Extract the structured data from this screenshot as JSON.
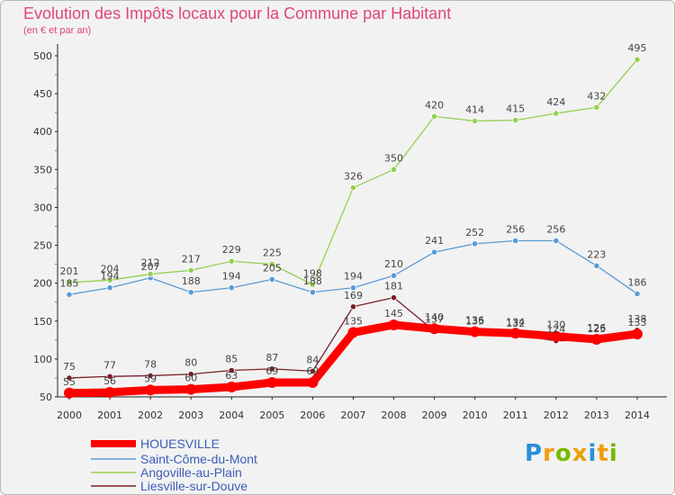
{
  "chart_data": {
    "type": "line",
    "title": "Evolution des Impôts locaux pour la Commune par Habitant",
    "subtitle": "(en € et par an)",
    "xlabel": "",
    "ylabel": "",
    "x": [
      2000,
      2001,
      2002,
      2003,
      2004,
      2005,
      2006,
      2007,
      2008,
      2009,
      2010,
      2011,
      2012,
      2013,
      2014
    ],
    "ylim": [
      50,
      500
    ],
    "yticks": [
      50,
      100,
      150,
      200,
      250,
      300,
      350,
      400,
      450,
      500
    ],
    "grid": false,
    "legend_position": "bottom-left",
    "series": [
      {
        "name": "HOUESVILLE",
        "color": "#ff0000",
        "values": [
          55,
          56,
          59,
          60,
          63,
          69,
          69,
          135,
          145,
          140,
          136,
          134,
          130,
          126,
          133
        ]
      },
      {
        "name": "Saint-Côme-du-Mont",
        "color": "#5b9bd5",
        "values": [
          185,
          194,
          207,
          188,
          194,
          205,
          188,
          194,
          210,
          241,
          252,
          256,
          256,
          223,
          186
        ]
      },
      {
        "name": "Angoville-au-Plain",
        "color": "#92d050",
        "values": [
          201,
          204,
          212,
          217,
          229,
          225,
          198,
          326,
          350,
          420,
          414,
          415,
          424,
          432,
          495
        ]
      },
      {
        "name": "Liesville-sur-Douve",
        "color": "#7b1f2a",
        "values": [
          75,
          77,
          78,
          80,
          85,
          87,
          84,
          169,
          181,
          137,
          135,
          132,
          124,
          125,
          138
        ]
      }
    ]
  },
  "brand": {
    "p": "P",
    "r": "r",
    "o": "o",
    "x": "x",
    "i": "i",
    "t": "t",
    "i2": "i"
  }
}
